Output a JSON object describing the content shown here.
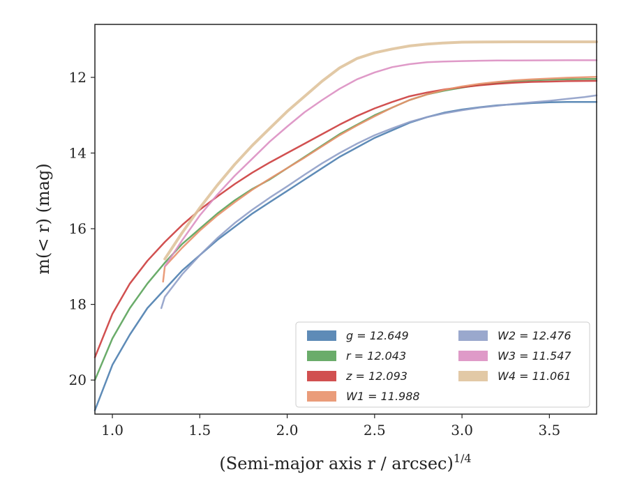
{
  "chart_data": {
    "type": "line",
    "xlabel": "(Semi-major axis r / arcsec)",
    "xlabel_sup": "1/4",
    "ylabel": "m(< r) (mag)",
    "xlim": [
      0.9,
      3.77
    ],
    "ylim": [
      20.9,
      10.6
    ],
    "y_inverted": true,
    "xticks": [
      "1.0",
      "1.5",
      "2.0",
      "2.5",
      "3.0",
      "3.5"
    ],
    "xtick_values": [
      1.0,
      1.5,
      2.0,
      2.5,
      3.0,
      3.5
    ],
    "yticks": [
      "12",
      "14",
      "16",
      "18",
      "20"
    ],
    "ytick_values": [
      12,
      14,
      16,
      18,
      20
    ],
    "grid": false,
    "legend_position": "lower-right",
    "series": [
      {
        "name": "g = 12.649",
        "color": "#4c7eaf",
        "x": [
          0.9,
          1.0,
          1.1,
          1.2,
          1.3,
          1.4,
          1.5,
          1.6,
          1.7,
          1.8,
          1.9,
          2.0,
          2.1,
          2.2,
          2.3,
          2.4,
          2.5,
          2.6,
          2.7,
          2.8,
          2.9,
          3.0,
          3.1,
          3.2,
          3.3,
          3.4,
          3.5,
          3.6,
          3.7,
          3.77
        ],
        "y": [
          20.8,
          19.6,
          18.8,
          18.1,
          17.6,
          17.1,
          16.7,
          16.3,
          15.95,
          15.6,
          15.3,
          15.0,
          14.7,
          14.4,
          14.1,
          13.85,
          13.6,
          13.4,
          13.2,
          13.05,
          12.93,
          12.85,
          12.79,
          12.74,
          12.71,
          12.68,
          12.66,
          12.65,
          12.65,
          12.649
        ]
      },
      {
        "name": "r = 12.043",
        "color": "#5aa35a",
        "x": [
          0.9,
          1.0,
          1.1,
          1.2,
          1.3,
          1.4,
          1.5,
          1.6,
          1.7,
          1.8,
          1.9,
          2.0,
          2.1,
          2.2,
          2.3,
          2.4,
          2.5,
          2.6,
          2.7,
          2.8,
          2.9,
          3.0,
          3.1,
          3.2,
          3.3,
          3.4,
          3.5,
          3.6,
          3.7,
          3.77
        ],
        "y": [
          20.0,
          18.9,
          18.1,
          17.45,
          16.9,
          16.4,
          16.0,
          15.6,
          15.25,
          14.95,
          14.7,
          14.4,
          14.1,
          13.8,
          13.5,
          13.25,
          13.0,
          12.8,
          12.6,
          12.45,
          12.35,
          12.27,
          12.2,
          12.15,
          12.1,
          12.08,
          12.06,
          12.05,
          12.045,
          12.043
        ]
      },
      {
        "name": "z = 12.093",
        "color": "#cc3d3d",
        "x": [
          0.9,
          1.0,
          1.1,
          1.2,
          1.3,
          1.4,
          1.5,
          1.6,
          1.7,
          1.8,
          1.9,
          2.0,
          2.1,
          2.2,
          2.3,
          2.4,
          2.5,
          2.6,
          2.7,
          2.8,
          2.9,
          3.0,
          3.1,
          3.2,
          3.3,
          3.4,
          3.5,
          3.6,
          3.7,
          3.77
        ],
        "y": [
          19.4,
          18.25,
          17.45,
          16.85,
          16.35,
          15.9,
          15.5,
          15.15,
          14.82,
          14.52,
          14.25,
          14.0,
          13.75,
          13.5,
          13.25,
          13.02,
          12.82,
          12.65,
          12.5,
          12.4,
          12.32,
          12.26,
          12.21,
          12.17,
          12.14,
          12.12,
          12.11,
          12.1,
          12.095,
          12.093
        ]
      },
      {
        "name": "W1 = 11.988",
        "color": "#e8916b",
        "x": [
          1.29,
          1.3,
          1.4,
          1.5,
          1.6,
          1.7,
          1.8,
          1.9,
          2.0,
          2.1,
          2.2,
          2.3,
          2.4,
          2.5,
          2.6,
          2.7,
          2.8,
          2.9,
          3.0,
          3.1,
          3.2,
          3.3,
          3.4,
          3.5,
          3.6,
          3.7,
          3.77
        ],
        "y": [
          17.4,
          17.0,
          16.5,
          16.05,
          15.65,
          15.3,
          14.97,
          14.68,
          14.4,
          14.12,
          13.82,
          13.53,
          13.27,
          13.03,
          12.8,
          12.6,
          12.45,
          12.33,
          12.24,
          12.17,
          12.12,
          12.08,
          12.05,
          12.03,
          12.01,
          11.995,
          11.988
        ]
      },
      {
        "name": "W2 = 12.476",
        "color": "#8f9fc8",
        "x": [
          1.28,
          1.3,
          1.4,
          1.5,
          1.6,
          1.7,
          1.8,
          1.9,
          2.0,
          2.1,
          2.2,
          2.3,
          2.4,
          2.5,
          2.6,
          2.7,
          2.8,
          2.9,
          3.0,
          3.1,
          3.2,
          3.3,
          3.4,
          3.5,
          3.6,
          3.7,
          3.77
        ],
        "y": [
          18.1,
          17.8,
          17.2,
          16.7,
          16.25,
          15.85,
          15.5,
          15.18,
          14.88,
          14.57,
          14.27,
          14.0,
          13.75,
          13.53,
          13.35,
          13.18,
          13.05,
          12.95,
          12.87,
          12.8,
          12.75,
          12.7,
          12.66,
          12.62,
          12.57,
          12.52,
          12.476
        ]
      },
      {
        "name": "W3 = 11.547",
        "color": "#dc8fc2",
        "x": [
          1.3,
          1.4,
          1.5,
          1.6,
          1.7,
          1.8,
          1.9,
          2.0,
          2.1,
          2.2,
          2.3,
          2.4,
          2.5,
          2.6,
          2.7,
          2.8,
          2.9,
          3.0,
          3.1,
          3.2,
          3.3,
          3.4,
          3.5,
          3.6,
          3.7,
          3.77
        ],
        "y": [
          17.0,
          16.3,
          15.65,
          15.1,
          14.6,
          14.15,
          13.7,
          13.3,
          12.92,
          12.6,
          12.3,
          12.05,
          11.87,
          11.73,
          11.65,
          11.6,
          11.58,
          11.57,
          11.56,
          11.555,
          11.552,
          11.55,
          11.549,
          11.548,
          11.547,
          11.547
        ]
      },
      {
        "name": "W4 = 11.061",
        "color": "#dfc39c",
        "x": [
          1.3,
          1.4,
          1.5,
          1.6,
          1.7,
          1.8,
          1.9,
          2.0,
          2.1,
          2.2,
          2.3,
          2.4,
          2.5,
          2.6,
          2.7,
          2.8,
          2.9,
          3.0,
          3.1,
          3.2,
          3.3,
          3.4,
          3.5,
          3.55,
          3.6,
          3.7,
          3.77
        ],
        "y": [
          16.8,
          16.1,
          15.45,
          14.85,
          14.3,
          13.8,
          13.35,
          12.9,
          12.5,
          12.1,
          11.75,
          11.5,
          11.35,
          11.25,
          11.17,
          11.12,
          11.09,
          11.07,
          11.065,
          11.062,
          11.061,
          11.061,
          11.061,
          11.06,
          11.061,
          11.061,
          11.061
        ]
      }
    ]
  }
}
